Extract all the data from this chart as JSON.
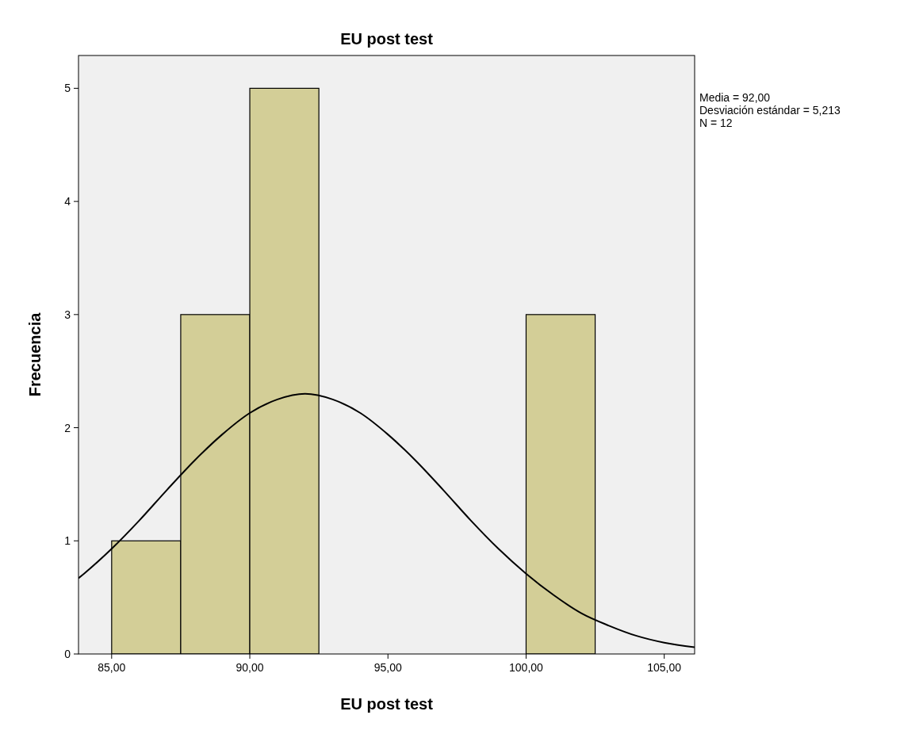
{
  "chart_data": {
    "type": "histogram",
    "title": "EU post test",
    "xlabel": "EU post test",
    "ylabel": "Frecuencia",
    "bins": [
      85,
      87.5,
      90,
      92.5,
      95,
      97.5,
      100,
      102.5
    ],
    "values": [
      1,
      3,
      5,
      0,
      0,
      0,
      3
    ],
    "color": "#d3ce97",
    "series": [
      {
        "type": "line",
        "color": "#000000",
        "x": [
          83.8,
          84,
          85,
          86,
          87,
          88,
          89,
          90,
          91,
          92,
          93,
          94,
          95,
          96,
          97,
          98,
          99,
          100,
          101,
          102,
          103,
          104,
          105,
          106.1
        ],
        "values": [
          0.67,
          0.71,
          0.93,
          1.18,
          1.45,
          1.71,
          1.94,
          2.13,
          2.25,
          2.3,
          2.25,
          2.13,
          1.94,
          1.71,
          1.45,
          1.18,
          0.93,
          0.71,
          0.52,
          0.36,
          0.25,
          0.16,
          0.1,
          0.06
        ]
      }
    ],
    "xlim": [
      83.8,
      106.1
    ],
    "xticks": [
      {
        "value": 85,
        "label": "85,00"
      },
      {
        "value": 90,
        "label": "90,00"
      },
      {
        "value": 95,
        "label": "95,00"
      },
      {
        "value": 100,
        "label": "100,00"
      },
      {
        "value": 105,
        "label": "105,00"
      }
    ],
    "ylim": [
      0,
      5.29
    ],
    "yticks": [
      0,
      1,
      2,
      3,
      4,
      5
    ],
    "grid": false,
    "annotations": [
      "Media = 92,00",
      "Desviación estándar = 5,213",
      "N = 12"
    ]
  }
}
